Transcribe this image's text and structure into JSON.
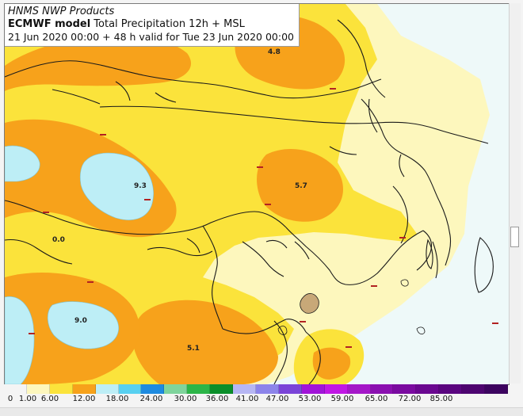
{
  "title": {
    "line1": "HNMS NWP Products",
    "line2_model": "ECMWF model",
    "line2_rest": " Total Precipitation 12h + MSL",
    "line3": "21 Jun 2020 00:00 + 48 h valid for Tue 23 Jun 2020 00:00"
  },
  "colors": {
    "sea": "#eef9f9",
    "pale_yellow": "#fdf7bd",
    "yellow": "#fbe33b",
    "orange": "#f7a21b",
    "light_cyan": "#bdeef6",
    "coast": "#1a1a1a"
  },
  "map_labels": {
    "max_1": "4.8",
    "max_2": "9.3",
    "max_3": "5.7",
    "max_4": "9.0",
    "max_5": "5.1",
    "max_6": "0.0"
  },
  "colorbar": {
    "ticks": [
      "0",
      "1.00",
      "6.00",
      "12.00",
      "18.00",
      "24.00",
      "30.00",
      "36.00",
      "41.00",
      "47.00",
      "53.00",
      "59.00",
      "65.00",
      "72.00",
      "85.00"
    ],
    "colors": [
      "#f4f4f4",
      "#fdf7bd",
      "#fbe33b",
      "#f7a21b",
      "#bdeef6",
      "#58d0f0",
      "#1e8be0",
      "#7fd49c",
      "#2cb548",
      "#0a8e2a",
      "#b6b6f4",
      "#8c84ea",
      "#7a44d8",
      "#a114d8",
      "#c017e4",
      "#a417c8",
      "#8a10b0",
      "#7a0ba0",
      "#6a0890",
      "#5a0680",
      "#4d0570",
      "#3c0460"
    ]
  }
}
